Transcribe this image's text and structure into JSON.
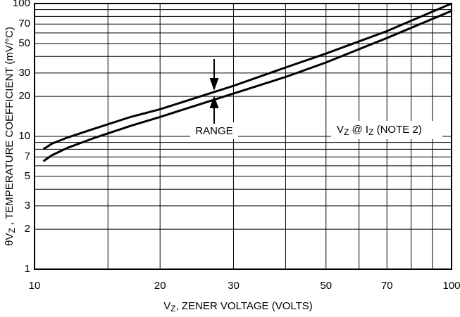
{
  "chart_data": {
    "type": "line",
    "xlabel": [
      "V",
      "Z",
      ", ZENER VOLTAGE (VOLTS)"
    ],
    "ylabel": [
      "θV",
      "Z",
      " , TEMPERATURE COEFFICIENT (mV/°C)"
    ],
    "annotations": {
      "range": "RANGE",
      "note": [
        "V",
        "Z",
        " @ I",
        "Z",
        " (NOTE 2)"
      ]
    },
    "xscale": "log",
    "yscale": "log",
    "xlim": [
      10,
      100
    ],
    "ylim": [
      1,
      100
    ],
    "xticks": [
      10,
      20,
      30,
      50,
      70,
      100
    ],
    "yticks": [
      1,
      2,
      3,
      5,
      7,
      10,
      20,
      30,
      50,
      70,
      100
    ],
    "xgrid": [
      10,
      15,
      20,
      30,
      40,
      50,
      60,
      70,
      80,
      90,
      100
    ],
    "ygrid": [
      1,
      2,
      3,
      4,
      5,
      6,
      7,
      8,
      9,
      10,
      20,
      30,
      40,
      50,
      60,
      70,
      80,
      90,
      100
    ],
    "color": "#000000",
    "series": [
      {
        "x": [
          10.5,
          11,
          12,
          14,
          17,
          20,
          25,
          30,
          40,
          50,
          70,
          100
        ],
        "values": [
          8,
          8.8,
          9.8,
          11.5,
          14,
          16,
          20,
          24,
          33,
          42,
          62,
          100
        ]
      },
      {
        "x": [
          10.5,
          11,
          12,
          14,
          17,
          20,
          25,
          30,
          40,
          50,
          70,
          100
        ],
        "values": [
          6.5,
          7.2,
          8.2,
          9.8,
          12,
          14,
          17.5,
          21,
          28,
          36,
          55,
          88
        ]
      }
    ]
  }
}
